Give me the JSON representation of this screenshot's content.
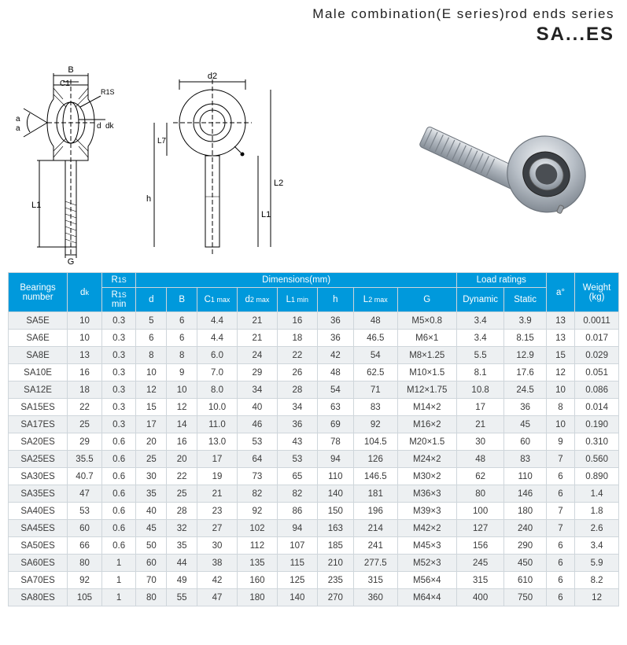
{
  "header": {
    "title": "Male  combination(E series)rod ends  series",
    "code": "SA...ES"
  },
  "diagram": {
    "labels": [
      "B",
      "C1",
      "R1S",
      "d",
      "dk",
      "a",
      "a",
      "L1",
      "G",
      "d2",
      "L7",
      "h",
      "L1",
      "L2"
    ]
  },
  "table": {
    "headers": {
      "bearings_number": "Bearings number",
      "dk": "d",
      "dk_sub": "k",
      "r1s_group": "R",
      "r1s_group_sub": "1S",
      "r1s": "R",
      "r1s_sub": "1S",
      "min": "min",
      "dimensions": "Dimensions(mm)",
      "d": "d",
      "B": "B",
      "C1": "C",
      "C1_sub": "1 max",
      "d2": "d",
      "d2_sub": "2 max",
      "L1": "L",
      "L1_sub": "1 min",
      "h": "h",
      "L2": "L",
      "L2_sub": "2 max",
      "G": "G",
      "load_ratings": "Load ratings",
      "dynamic": "Dynamic",
      "static": "Static",
      "a": "a°",
      "weight": "Weight (kg)"
    },
    "rows": [
      {
        "bn": "SA5E",
        "dk": "10",
        "r1s": "0.3",
        "d": "5",
        "B": "6",
        "C1": "4.4",
        "d2": "21",
        "L1": "16",
        "h": "36",
        "L2": "48",
        "G": "M5×0.8",
        "dy": "3.4",
        "st": "3.9",
        "a": "13",
        "wt": "0.0011"
      },
      {
        "bn": "SA6E",
        "dk": "10",
        "r1s": "0.3",
        "d": "6",
        "B": "6",
        "C1": "4.4",
        "d2": "21",
        "L1": "18",
        "h": "36",
        "L2": "46.5",
        "G": "M6×1",
        "dy": "3.4",
        "st": "8.15",
        "a": "13",
        "wt": "0.017"
      },
      {
        "bn": "SA8E",
        "dk": "13",
        "r1s": "0.3",
        "d": "8",
        "B": "8",
        "C1": "6.0",
        "d2": "24",
        "L1": "22",
        "h": "42",
        "L2": "54",
        "G": "M8×1.25",
        "dy": "5.5",
        "st": "12.9",
        "a": "15",
        "wt": "0.029"
      },
      {
        "bn": "SA10E",
        "dk": "16",
        "r1s": "0.3",
        "d": "10",
        "B": "9",
        "C1": "7.0",
        "d2": "29",
        "L1": "26",
        "h": "48",
        "L2": "62.5",
        "G": "M10×1.5",
        "dy": "8.1",
        "st": "17.6",
        "a": "12",
        "wt": "0.051"
      },
      {
        "bn": "SA12E",
        "dk": "18",
        "r1s": "0.3",
        "d": "12",
        "B": "10",
        "C1": "8.0",
        "d2": "34",
        "L1": "28",
        "h": "54",
        "L2": "71",
        "G": "M12×1.75",
        "dy": "10.8",
        "st": "24.5",
        "a": "10",
        "wt": "0.086"
      },
      {
        "bn": "SA15ES",
        "dk": "22",
        "r1s": "0.3",
        "d": "15",
        "B": "12",
        "C1": "10.0",
        "d2": "40",
        "L1": "34",
        "h": "63",
        "L2": "83",
        "G": "M14×2",
        "dy": "17",
        "st": "36",
        "a": "8",
        "wt": "0.014"
      },
      {
        "bn": "SA17ES",
        "dk": "25",
        "r1s": "0.3",
        "d": "17",
        "B": "14",
        "C1": "11.0",
        "d2": "46",
        "L1": "36",
        "h": "69",
        "L2": "92",
        "G": "M16×2",
        "dy": "21",
        "st": "45",
        "a": "10",
        "wt": "0.190"
      },
      {
        "bn": "SA20ES",
        "dk": "29",
        "r1s": "0.6",
        "d": "20",
        "B": "16",
        "C1": "13.0",
        "d2": "53",
        "L1": "43",
        "h": "78",
        "L2": "104.5",
        "G": "M20×1.5",
        "dy": "30",
        "st": "60",
        "a": "9",
        "wt": "0.310"
      },
      {
        "bn": "SA25ES",
        "dk": "35.5",
        "r1s": "0.6",
        "d": "25",
        "B": "20",
        "C1": "17",
        "d2": "64",
        "L1": "53",
        "h": "94",
        "L2": "126",
        "G": "M24×2",
        "dy": "48",
        "st": "83",
        "a": "7",
        "wt": "0.560"
      },
      {
        "bn": "SA30ES",
        "dk": "40.7",
        "r1s": "0.6",
        "d": "30",
        "B": "22",
        "C1": "19",
        "d2": "73",
        "L1": "65",
        "h": "110",
        "L2": "146.5",
        "G": "M30×2",
        "dy": "62",
        "st": "110",
        "a": "6",
        "wt": "0.890"
      },
      {
        "bn": "SA35ES",
        "dk": "47",
        "r1s": "0.6",
        "d": "35",
        "B": "25",
        "C1": "21",
        "d2": "82",
        "L1": "82",
        "h": "140",
        "L2": "181",
        "G": "M36×3",
        "dy": "80",
        "st": "146",
        "a": "6",
        "wt": "1.4"
      },
      {
        "bn": "SA40ES",
        "dk": "53",
        "r1s": "0.6",
        "d": "40",
        "B": "28",
        "C1": "23",
        "d2": "92",
        "L1": "86",
        "h": "150",
        "L2": "196",
        "G": "M39×3",
        "dy": "100",
        "st": "180",
        "a": "7",
        "wt": "1.8"
      },
      {
        "bn": "SA45ES",
        "dk": "60",
        "r1s": "0.6",
        "d": "45",
        "B": "32",
        "C1": "27",
        "d2": "102",
        "L1": "94",
        "h": "163",
        "L2": "214",
        "G": "M42×2",
        "dy": "127",
        "st": "240",
        "a": "7",
        "wt": "2.6"
      },
      {
        "bn": "SA50ES",
        "dk": "66",
        "r1s": "0.6",
        "d": "50",
        "B": "35",
        "C1": "30",
        "d2": "112",
        "L1": "107",
        "h": "185",
        "L2": "241",
        "G": "M45×3",
        "dy": "156",
        "st": "290",
        "a": "6",
        "wt": "3.4"
      },
      {
        "bn": "SA60ES",
        "dk": "80",
        "r1s": "1",
        "d": "60",
        "B": "44",
        "C1": "38",
        "d2": "135",
        "L1": "115",
        "h": "210",
        "L2": "277.5",
        "G": "M52×3",
        "dy": "245",
        "st": "450",
        "a": "6",
        "wt": "5.9"
      },
      {
        "bn": "SA70ES",
        "dk": "92",
        "r1s": "1",
        "d": "70",
        "B": "49",
        "C1": "42",
        "d2": "160",
        "L1": "125",
        "h": "235",
        "L2": "315",
        "G": "M56×4",
        "dy": "315",
        "st": "610",
        "a": "6",
        "wt": "8.2"
      },
      {
        "bn": "SA80ES",
        "dk": "105",
        "r1s": "1",
        "d": "80",
        "B": "55",
        "C1": "47",
        "d2": "180",
        "L1": "140",
        "h": "270",
        "L2": "360",
        "G": "M64×4",
        "dy": "400",
        "st": "750",
        "a": "6",
        "wt": "12"
      }
    ]
  },
  "colors": {
    "header_bg": "#0099dc",
    "header_text": "#ffffff",
    "row_odd": "#edf0f2",
    "row_even": "#ffffff",
    "border": "#cfd6db",
    "ink": "#3a3a3a"
  }
}
